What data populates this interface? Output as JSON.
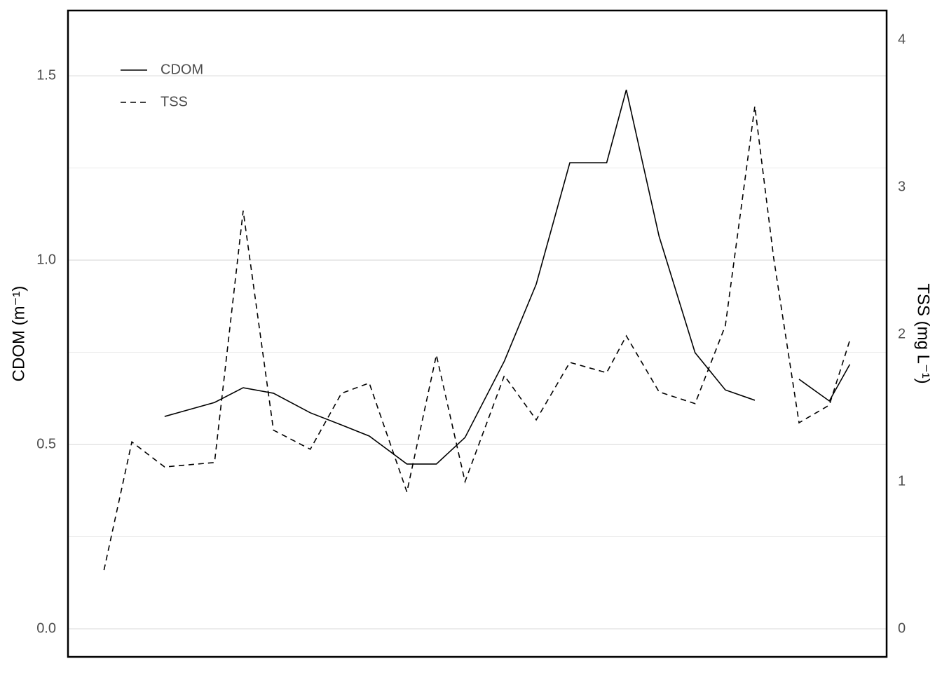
{
  "chart_data": {
    "type": "line",
    "x": [
      4.4,
      7.8,
      11.8,
      17.9,
      21.4,
      25.1,
      29.6,
      33.4,
      36.8,
      41.4,
      45.0,
      48.5,
      53.3,
      57.2,
      61.3,
      65.8,
      68.2,
      72.2,
      76.6,
      80.3,
      83.9,
      86.2,
      89.3,
      93.0,
      95.5
    ],
    "xlim": [
      0,
      100
    ],
    "series": [
      {
        "name": "CDOM",
        "color": "#000000",
        "dash": "solid",
        "values": [
          null,
          null,
          0.576,
          0.614,
          0.654,
          0.639,
          0.586,
          0.553,
          0.523,
          0.447,
          0.447,
          0.519,
          0.726,
          0.935,
          1.264,
          1.264,
          1.462,
          1.065,
          0.749,
          0.648,
          0.62,
          null,
          0.677,
          0.618,
          0.717
        ]
      },
      {
        "name": "TSS",
        "color": "#000000",
        "dash": "dashed",
        "axis": "y2",
        "values": [
          0.4,
          1.27,
          1.1,
          1.13,
          2.84,
          1.35,
          1.22,
          1.6,
          1.67,
          0.93,
          1.86,
          1.0,
          1.72,
          1.42,
          1.81,
          1.74,
          1.99,
          1.61,
          1.53,
          2.06,
          3.55,
          2.52,
          1.4,
          1.52,
          1.96
        ]
      }
    ],
    "ylabel": "CDOM (m⁻¹)",
    "y2label": "TSS (mg L⁻¹)",
    "ylim": [
      -0.076,
      1.677
    ],
    "yticks": [
      {
        "value": 0,
        "label": "0.0"
      },
      0.5,
      {
        "value": 1,
        "label": "1.0"
      },
      1.5
    ],
    "yminorticks": [
      0.25,
      0.75,
      1.25
    ],
    "y2lim": [
      -0.19,
      4.2
    ],
    "y2ticks": [
      0,
      1,
      2,
      3,
      4
    ],
    "grid": true,
    "legend": "top-left"
  }
}
